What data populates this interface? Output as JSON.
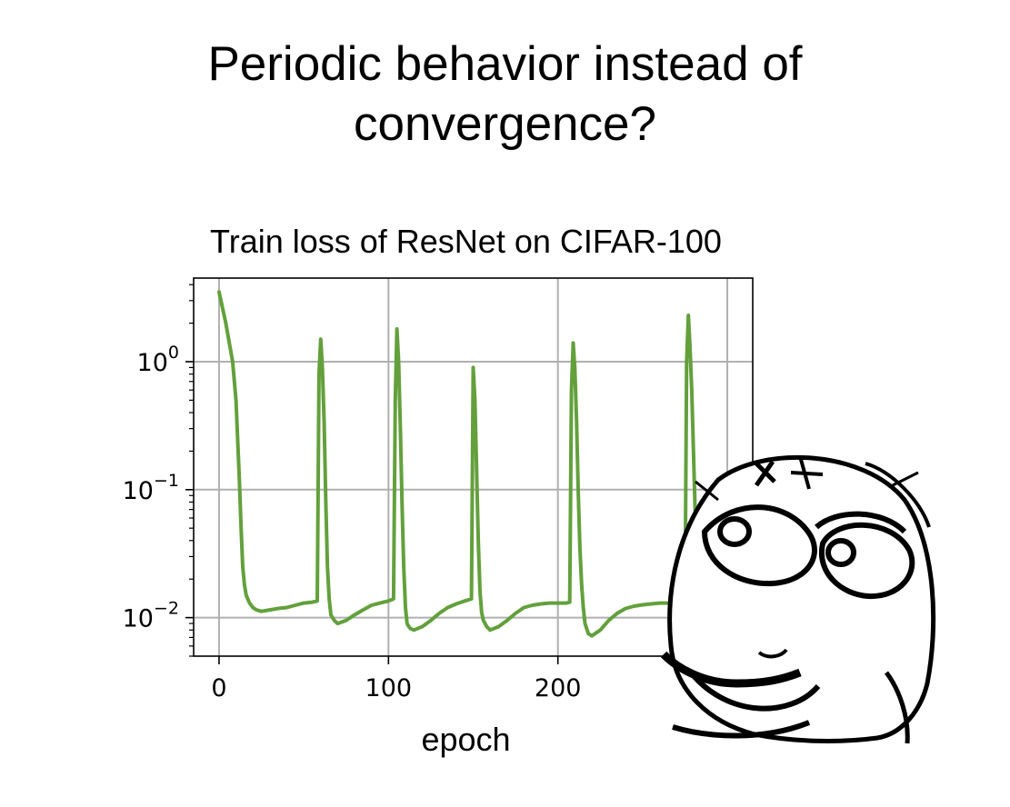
{
  "slide": {
    "title_line1": "Periodic behavior instead of",
    "title_line2": "convergence?"
  },
  "colors": {
    "series": "#63a03c",
    "grid": "#b0b0b0",
    "axis": "#000000"
  },
  "meme": {
    "icon": "thinking-rage-face-icon"
  },
  "chart_data": {
    "type": "line",
    "title": "Train loss of ResNet on CIFAR-100",
    "xlabel": "epoch",
    "ylabel": "",
    "yscale": "log",
    "xlim": [
      -15,
      315
    ],
    "ylim": [
      0.005,
      4.5
    ],
    "grid": true,
    "legend": "none",
    "x_ticks": [
      0,
      100,
      200,
      300
    ],
    "x_tick_labels": [
      "0",
      "100",
      "200",
      ""
    ],
    "y_ticks": [
      0.01,
      0.1,
      1
    ],
    "y_tick_labels": [
      {
        "base": "10",
        "exp": "−2"
      },
      {
        "base": "10",
        "exp": "−1"
      },
      {
        "base": "10",
        "exp": "0"
      }
    ],
    "series": [
      {
        "name": "",
        "x": [
          0,
          4,
          8,
          10,
          12,
          13,
          14,
          15,
          16,
          18,
          20,
          22,
          25,
          30,
          35,
          40,
          45,
          50,
          55,
          58,
          59,
          60,
          61,
          62,
          63,
          64,
          65,
          66,
          68,
          70,
          75,
          80,
          85,
          90,
          95,
          100,
          103,
          104,
          105,
          106,
          107,
          108,
          109,
          110,
          111,
          112,
          113,
          115,
          120,
          125,
          130,
          135,
          140,
          145,
          149,
          150,
          151,
          152,
          153,
          154,
          155,
          156,
          158,
          160,
          165,
          170,
          175,
          180,
          185,
          190,
          195,
          200,
          205,
          207,
          208,
          209,
          210,
          211,
          212,
          213,
          214,
          215,
          216,
          218,
          220,
          225,
          230,
          235,
          240,
          245,
          250,
          255,
          260,
          265,
          270,
          275,
          276,
          277,
          278,
          279,
          280,
          281,
          282,
          283,
          285
        ],
        "y": [
          3.5,
          2.0,
          1.0,
          0.5,
          0.12,
          0.05,
          0.025,
          0.018,
          0.015,
          0.013,
          0.012,
          0.0115,
          0.0112,
          0.0115,
          0.0118,
          0.012,
          0.0125,
          0.013,
          0.0132,
          0.0135,
          0.8,
          1.5,
          0.9,
          0.35,
          0.08,
          0.025,
          0.014,
          0.0105,
          0.0095,
          0.009,
          0.0095,
          0.0105,
          0.0115,
          0.0125,
          0.013,
          0.0135,
          0.014,
          0.5,
          1.8,
          1.0,
          0.3,
          0.08,
          0.025,
          0.012,
          0.009,
          0.0085,
          0.0082,
          0.008,
          0.0085,
          0.0095,
          0.0108,
          0.012,
          0.0128,
          0.0135,
          0.014,
          0.9,
          0.5,
          0.15,
          0.04,
          0.016,
          0.011,
          0.0095,
          0.0085,
          0.008,
          0.0085,
          0.0095,
          0.0108,
          0.012,
          0.0125,
          0.0128,
          0.013,
          0.013,
          0.013,
          0.0132,
          0.6,
          1.4,
          0.9,
          0.35,
          0.1,
          0.035,
          0.018,
          0.012,
          0.009,
          0.0075,
          0.0072,
          0.008,
          0.0095,
          0.0108,
          0.0118,
          0.0123,
          0.0126,
          0.0128,
          0.013,
          0.013,
          0.0132,
          0.0135,
          1.0,
          2.3,
          1.3,
          0.6,
          0.2,
          0.07,
          0.03,
          0.02,
          0.016
        ]
      }
    ]
  }
}
